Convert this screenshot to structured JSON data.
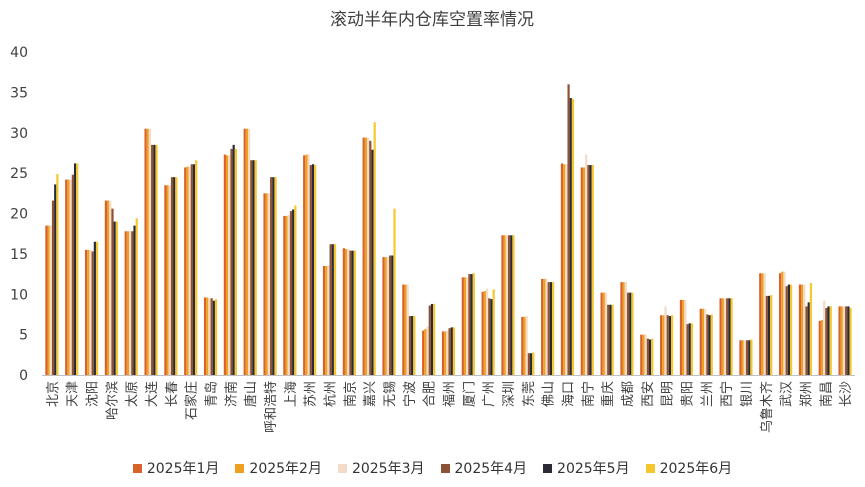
{
  "chart_data": {
    "type": "bar",
    "title": "滚动半年内仓库空置率情况",
    "xlabel": "",
    "ylabel": "",
    "ylim": [
      0,
      40
    ],
    "yticks": [
      0,
      5,
      10,
      15,
      20,
      25,
      30,
      35,
      40
    ],
    "grid": false,
    "legend_position": "bottom",
    "categories": [
      "北京",
      "天津",
      "沈阳",
      "哈尔滨",
      "太原",
      "大连",
      "长春",
      "石家庄",
      "青岛",
      "济南",
      "唐山",
      "呼和浩特",
      "上海",
      "苏州",
      "杭州",
      "南京",
      "嘉兴",
      "无锡",
      "宁波",
      "合肥",
      "福州",
      "厦门",
      "广州",
      "深圳",
      "东莞",
      "佛山",
      "海口",
      "南宁",
      "重庆",
      "成都",
      "西安",
      "昆明",
      "贵阳",
      "兰州",
      "西宁",
      "银川",
      "乌鲁木齐",
      "武汉",
      "郑州",
      "南昌",
      "长沙"
    ],
    "series": [
      {
        "name": "2025年1月",
        "color": "#D9622B",
        "values": [
          18.5,
          24.2,
          15.5,
          21.6,
          17.8,
          30.5,
          23.5,
          25.7,
          9.6,
          27.3,
          30.5,
          22.5,
          19.7,
          27.2,
          13.5,
          15.7,
          29.4,
          14.6,
          11.2,
          5.5,
          5.4,
          12.1,
          10.3,
          17.3,
          7.2,
          11.9,
          26.2,
          25.7,
          10.2,
          11.5,
          5.0,
          7.4,
          9.3,
          8.2,
          9.5,
          4.3,
          12.6,
          12.6,
          11.2,
          6.7,
          8.5
        ]
      },
      {
        "name": "2025年2月",
        "color": "#F0A020",
        "values": [
          18.5,
          24.2,
          15.5,
          21.6,
          17.8,
          30.5,
          23.5,
          25.8,
          9.6,
          27.2,
          30.5,
          22.5,
          19.7,
          27.3,
          13.5,
          15.6,
          29.4,
          14.6,
          11.2,
          5.7,
          5.4,
          12.1,
          10.4,
          17.3,
          7.2,
          11.9,
          26.1,
          25.7,
          10.2,
          11.5,
          5.0,
          7.4,
          9.3,
          8.2,
          9.5,
          4.3,
          12.6,
          12.8,
          11.2,
          6.8,
          8.5
        ]
      },
      {
        "name": "2025年3月",
        "color": "#F2DCC8",
        "values": [
          18.5,
          24.2,
          15.5,
          21.6,
          17.8,
          30.5,
          23.5,
          25.8,
          9.5,
          27.2,
          30.5,
          22.5,
          19.8,
          27.3,
          13.6,
          15.6,
          29.4,
          14.6,
          11.2,
          6.0,
          5.5,
          12.1,
          10.7,
          17.3,
          7.3,
          11.9,
          26.1,
          27.3,
          10.2,
          11.5,
          5.0,
          8.5,
          9.3,
          8.2,
          9.5,
          4.3,
          12.6,
          12.8,
          11.2,
          9.2,
          8.5
        ]
      },
      {
        "name": "2025年4月",
        "color": "#8B5236",
        "values": [
          21.6,
          24.8,
          15.3,
          20.6,
          17.8,
          28.5,
          24.5,
          26.1,
          9.5,
          28.0,
          26.6,
          24.5,
          20.3,
          26.0,
          16.2,
          15.4,
          29.0,
          14.8,
          7.3,
          8.6,
          5.8,
          12.5,
          9.5,
          17.3,
          2.7,
          11.5,
          36.0,
          26.0,
          8.7,
          10.2,
          4.5,
          7.4,
          6.3,
          7.5,
          9.5,
          4.3,
          9.8,
          11.0,
          8.5,
          8.3,
          8.5
        ]
      },
      {
        "name": "2025年5月",
        "color": "#2B2B38",
        "values": [
          23.6,
          26.2,
          16.5,
          19.0,
          18.5,
          28.5,
          24.5,
          26.1,
          9.2,
          28.5,
          26.6,
          24.5,
          20.5,
          26.1,
          16.2,
          15.4,
          27.9,
          14.8,
          7.3,
          8.8,
          5.9,
          12.5,
          9.4,
          17.3,
          2.7,
          11.5,
          34.3,
          26.0,
          8.7,
          10.2,
          4.4,
          7.3,
          6.4,
          7.4,
          9.5,
          4.3,
          9.8,
          11.2,
          9.0,
          8.5,
          8.5
        ]
      },
      {
        "name": "2025年6月",
        "color": "#F5C830",
        "values": [
          24.9,
          26.2,
          16.5,
          19.0,
          19.4,
          28.5,
          24.5,
          26.6,
          9.4,
          28.0,
          26.6,
          24.5,
          21.0,
          26.0,
          16.2,
          15.4,
          31.3,
          20.6,
          7.3,
          8.8,
          5.9,
          12.6,
          10.6,
          17.3,
          2.8,
          11.5,
          34.2,
          26.0,
          8.7,
          10.2,
          4.5,
          7.4,
          6.4,
          7.5,
          9.5,
          4.4,
          9.9,
          11.2,
          11.4,
          8.5,
          8.3
        ]
      }
    ]
  }
}
